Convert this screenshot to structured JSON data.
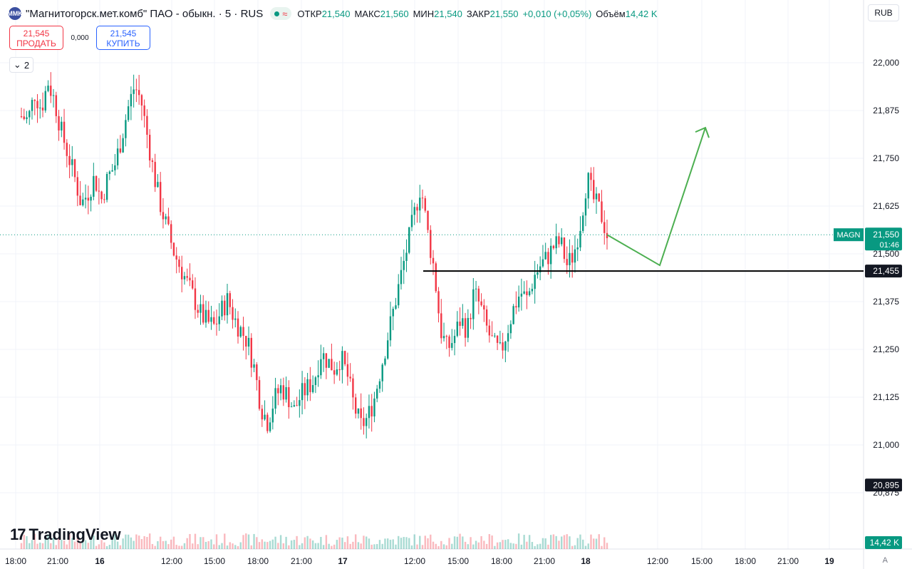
{
  "legend": {
    "logo_text": "MMK",
    "title": "\"Магнитогорск.мет.комб\" ПАО - обыкн. · 5 · RUS",
    "status_icon": "market-open-dot",
    "open_label": "ОТКР",
    "open_value": "21,540",
    "high_label": "МАКС",
    "high_value": "21,560",
    "low_label": "МИН",
    "low_value": "21,540",
    "close_label": "ЗАКР",
    "close_value": "21,550",
    "change_value": "+0,010 (+0,05%)",
    "volume_label": "Объём",
    "volume_value": "14,42 K"
  },
  "trade": {
    "sell_price": "21,545",
    "sell_label": "ПРОДАТЬ",
    "spread": "0,000",
    "buy_price": "21,545",
    "buy_label": "КУПИТЬ"
  },
  "collapse_count": "2",
  "currency": "RUB",
  "brand": "TradingView",
  "auto_label": "A",
  "colors": {
    "up": "#089981",
    "down": "#f23645",
    "drawing": "#4caf50",
    "line": "#000000"
  },
  "chart_data": {
    "type": "candlestick",
    "symbol": "MAGN",
    "interval": "5",
    "ylim": [
      20.85,
      22.05
    ],
    "y_ticks": [
      "22,000",
      "21,875",
      "21,750",
      "21,625",
      "21,500",
      "21,375",
      "21,250",
      "21,125",
      "21,000",
      "20,875"
    ],
    "x_ticks": [
      "18:00",
      "21:00",
      "16",
      "12:00",
      "15:00",
      "18:00",
      "21:00",
      "17",
      "12:00",
      "15:00",
      "18:00",
      "21:00",
      "18",
      "12:00",
      "15:00",
      "18:00",
      "21:00",
      "19"
    ],
    "price_marks": [
      {
        "label": "MAGN",
        "value": "21,550",
        "timer": "01:46",
        "color": "#089981"
      },
      {
        "value": "21,455",
        "color": "#131722"
      },
      {
        "value": "20,895",
        "color": "#131722"
      }
    ],
    "horizontal_line": 21.455,
    "projection_path": [
      21.55,
      21.47,
      21.83
    ],
    "volume_last": "14,42 K",
    "close_path": [
      21.86,
      21.85,
      21.92,
      21.88,
      21.95,
      21.9,
      21.82,
      21.76,
      21.7,
      21.63,
      21.66,
      21.7,
      21.64,
      21.7,
      21.73,
      21.8,
      21.88,
      21.94,
      21.9,
      21.8,
      21.7,
      21.62,
      21.56,
      21.5,
      21.46,
      21.42,
      21.38,
      21.34,
      21.32,
      21.31,
      21.35,
      21.38,
      21.33,
      21.3,
      21.27,
      21.2,
      21.1,
      21.06,
      21.12,
      21.15,
      21.13,
      21.09,
      21.13,
      21.15,
      21.17,
      21.24,
      21.22,
      21.2,
      21.23,
      21.18,
      21.1,
      21.05,
      21.07,
      21.12,
      21.2,
      21.28,
      21.36,
      21.44,
      21.52,
      21.6,
      21.68,
      21.56,
      21.46,
      21.3,
      21.25,
      21.28,
      21.33,
      21.3,
      21.4,
      21.36,
      21.3,
      21.26,
      21.24,
      21.3,
      21.36,
      21.4,
      21.38,
      21.44,
      21.47,
      21.49,
      21.52,
      21.53,
      21.47,
      21.5,
      21.58,
      21.7,
      21.64,
      21.61,
      21.55
    ]
  }
}
